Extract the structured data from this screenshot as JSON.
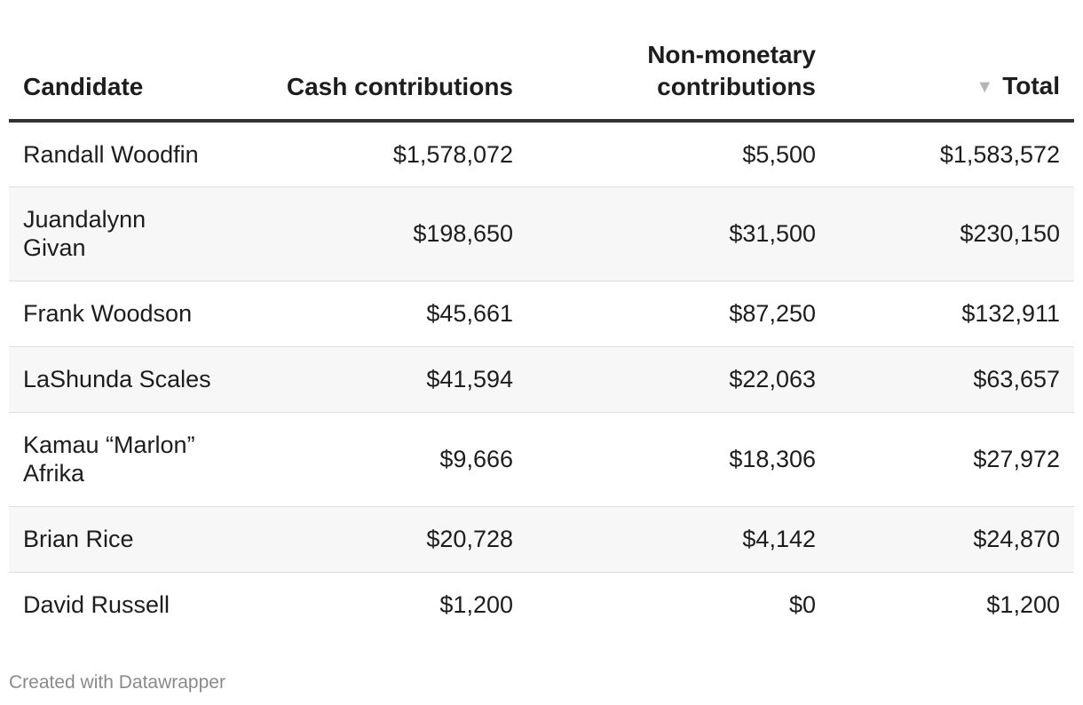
{
  "chart_data": {
    "type": "table",
    "columns": [
      "Candidate",
      "Cash contributions",
      "Non-monetary contributions",
      "Total"
    ],
    "sort": {
      "column": "Total",
      "direction": "descending"
    },
    "rows": [
      {
        "candidate": "Randall Woodfin",
        "cash": "$1,578,072",
        "non_monetary": "$5,500",
        "total": "$1,583,572"
      },
      {
        "candidate": "Juandalynn Givan",
        "cash": "$198,650",
        "non_monetary": "$31,500",
        "total": "$230,150"
      },
      {
        "candidate": "Frank Woodson",
        "cash": "$45,661",
        "non_monetary": "$87,250",
        "total": "$132,911"
      },
      {
        "candidate": "LaShunda Scales",
        "cash": "$41,594",
        "non_monetary": "$22,063",
        "total": "$63,657"
      },
      {
        "candidate": "Kamau “Marlon” Afrika",
        "cash": "$9,666",
        "non_monetary": "$18,306",
        "total": "$27,972"
      },
      {
        "candidate": "Brian Rice",
        "cash": "$20,728",
        "non_monetary": "$4,142",
        "total": "$24,870"
      },
      {
        "candidate": "David Russell",
        "cash": "$1,200",
        "non_monetary": "$0",
        "total": "$1,200"
      }
    ]
  },
  "sort_icon": "triangle-down-icon",
  "footer": {
    "credit": "Created with Datawrapper"
  },
  "colors": {
    "header_rule": "#333333",
    "row_stripe": "#f7f7f7",
    "row_divider": "#dedede",
    "footer_text": "#8a8a8a",
    "sort_icon": "#b5b5b5"
  }
}
